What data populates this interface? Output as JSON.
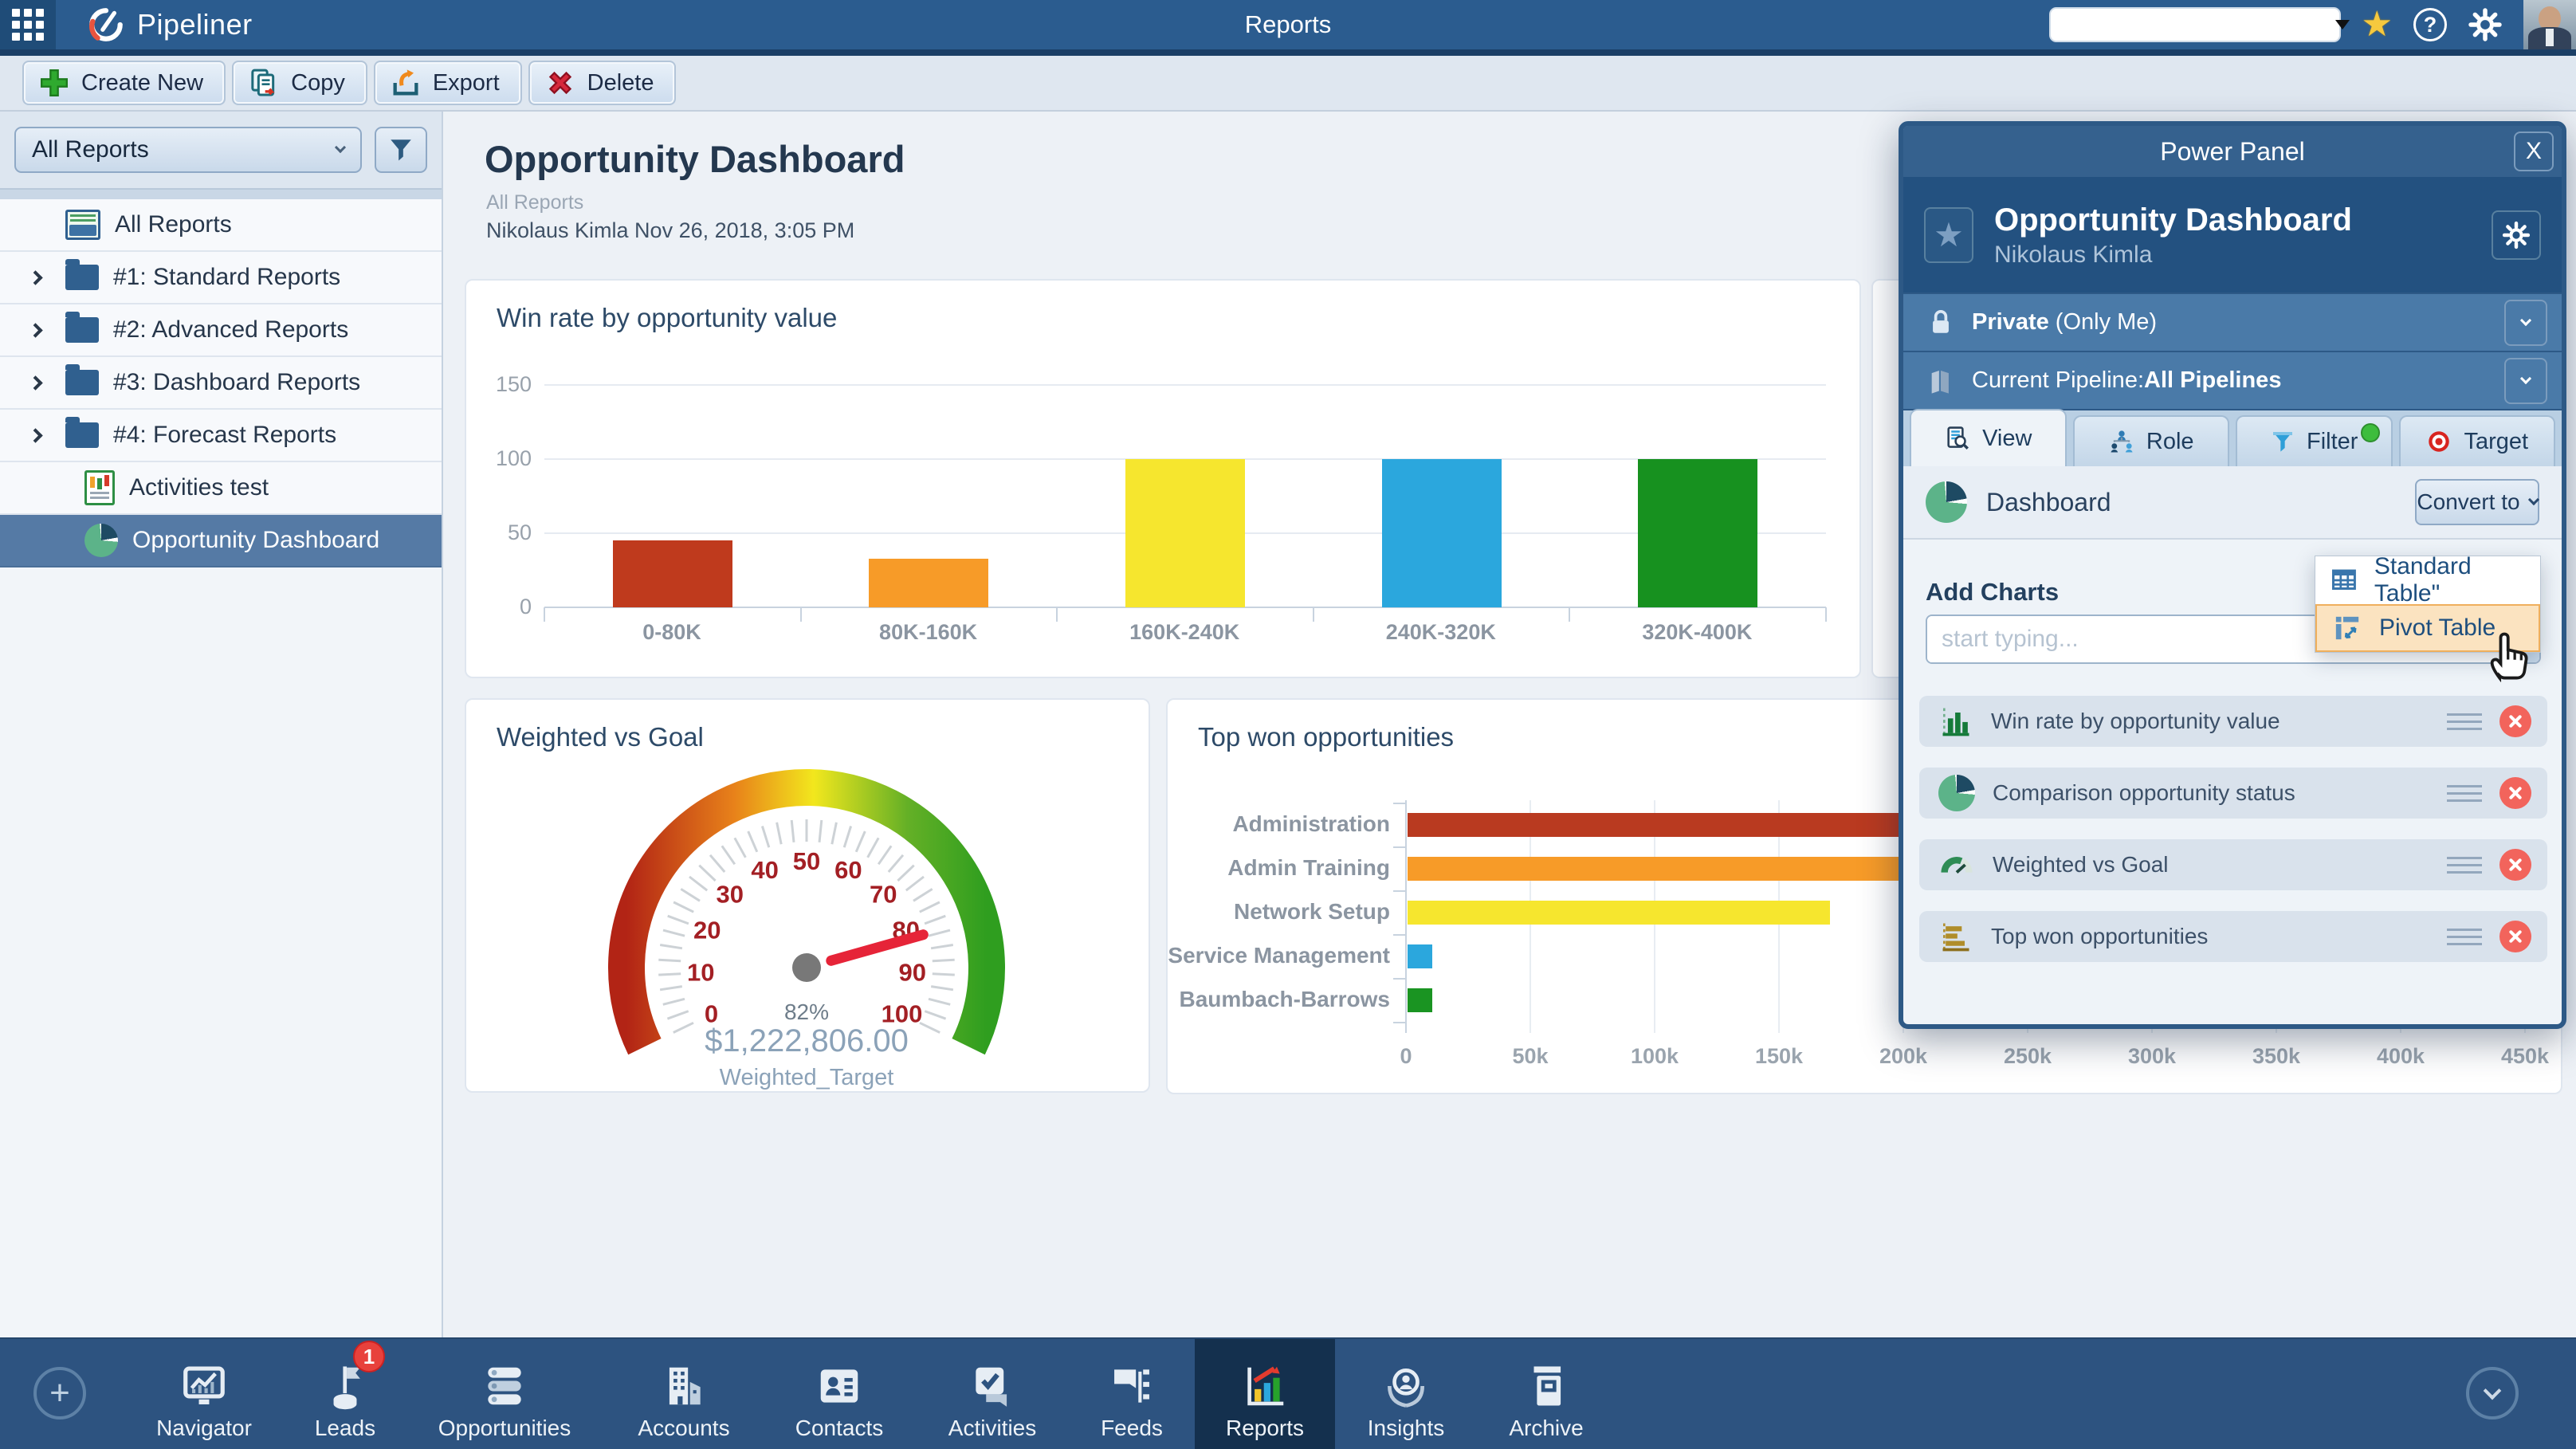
{
  "topbar": {
    "app_name": "Pipeliner",
    "page_title": "Reports",
    "search_value": ""
  },
  "toolbar": {
    "buttons": [
      {
        "label": "Create New",
        "icon": "plus-icon"
      },
      {
        "label": "Copy",
        "icon": "copy-icon"
      },
      {
        "label": "Export",
        "icon": "export-icon"
      },
      {
        "label": "Delete",
        "icon": "delete-icon"
      }
    ]
  },
  "sidebar": {
    "filter_select_value": "All Reports",
    "items": [
      {
        "label": "All Reports",
        "icon": "reports-drawer-icon"
      },
      {
        "label": "#1: Standard Reports",
        "icon": "folder-icon",
        "expandable": true
      },
      {
        "label": "#2: Advanced Reports",
        "icon": "folder-icon",
        "expandable": true
      },
      {
        "label": "#3: Dashboard Reports",
        "icon": "folder-icon",
        "expandable": true
      },
      {
        "label": "#4: Forecast Reports",
        "icon": "folder-icon",
        "expandable": true
      },
      {
        "label": "Activities test",
        "icon": "report-document-icon"
      },
      {
        "label": "Opportunity Dashboard",
        "icon": "pie-chart-icon",
        "selected": true
      }
    ]
  },
  "main": {
    "title": "Opportunity Dashboard",
    "subtitle": "All Reports",
    "byline": "Nikolaus Kimla Nov 26, 2018, 3:05 PM"
  },
  "chart_data": [
    {
      "type": "bar",
      "title": "Win rate by opportunity value",
      "categories": [
        "0-80K",
        "80K-160K",
        "160K-240K",
        "240K-320K",
        "320K-400K"
      ],
      "values": [
        45,
        33,
        100,
        100,
        100
      ],
      "colors": [
        "#bf3a1d",
        "#f79b28",
        "#f6e62e",
        "#2ba7dd",
        "#17911f"
      ],
      "ylim": [
        0,
        150
      ],
      "yticks": [
        0,
        50,
        100,
        150
      ],
      "grid": true,
      "legend": false
    },
    {
      "type": "gauge",
      "title": "Weighted vs Goal",
      "min": 0,
      "max": 100,
      "value": 82,
      "tick_label_step": 10,
      "value_label": "82%",
      "amount_label": "$1,222,806.00",
      "caption": "Weighted_Target",
      "needle_color": "#e62438",
      "tick_label_color": "#a31f24"
    },
    {
      "type": "bar-horizontal",
      "title": "Top won opportunities",
      "categories": [
        "Administration",
        "Admin Training",
        "Network Setup",
        "Service Management",
        "Baumbach-Barrows"
      ],
      "values": [
        440000,
        425000,
        170000,
        10000,
        10000
      ],
      "colors": [
        "#b93a20",
        "#f79b28",
        "#f6e62e",
        "#2ba7dd",
        "#1a9422"
      ],
      "xlim": [
        0,
        450000
      ],
      "xtick_labels": [
        "0",
        "50k",
        "100k",
        "150k",
        "200k",
        "250k",
        "300k",
        "350k",
        "400k",
        "450k"
      ],
      "note": "Administration and Admin Training bars extend behind the Power Panel; their values are estimated"
    }
  ],
  "power_panel": {
    "title": "Power Panel",
    "report_title": "Opportunity Dashboard",
    "report_owner": "Nikolaus Kimla",
    "privacy_label": "Private",
    "privacy_detail": "(Only Me)",
    "pipeline_label": "Current Pipeline:",
    "pipeline_value": "All Pipelines",
    "tabs": [
      {
        "label": "View",
        "active": true
      },
      {
        "label": "Role"
      },
      {
        "label": "Filter",
        "indicator": true
      },
      {
        "label": "Target"
      }
    ],
    "view_type_label": "Dashboard",
    "convert_button": "Convert to",
    "convert_menu": [
      {
        "label": "Standard Table\""
      },
      {
        "label": "Pivot Table",
        "highlighted": true
      }
    ],
    "add_charts_label": "Add Charts",
    "add_charts_placeholder": "start typing...",
    "charts": [
      {
        "label": "Win rate by opportunity value",
        "icon": "bar-chart-icon"
      },
      {
        "label": "Comparison opportunity status",
        "icon": "pie-chart-icon"
      },
      {
        "label": "Weighted vs Goal",
        "icon": "gauge-icon"
      },
      {
        "label": "Top won opportunities",
        "icon": "hbar-chart-icon"
      }
    ]
  },
  "bottom_nav": {
    "items": [
      {
        "label": "Navigator"
      },
      {
        "label": "Leads",
        "badge": "1"
      },
      {
        "label": "Opportunities"
      },
      {
        "label": "Accounts"
      },
      {
        "label": "Contacts"
      },
      {
        "label": "Activities"
      },
      {
        "label": "Feeds"
      },
      {
        "label": "Reports",
        "active": true
      },
      {
        "label": "Insights"
      },
      {
        "label": "Archive"
      }
    ]
  }
}
